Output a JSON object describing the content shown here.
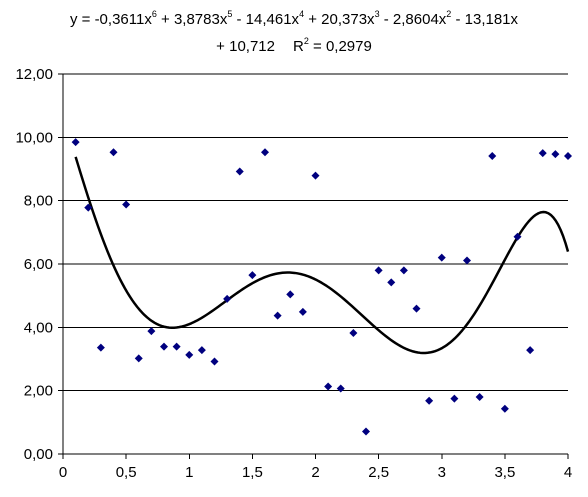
{
  "chart_data": {
    "type": "scatter",
    "title": {
      "line1": [
        {
          "text": "y = -0,3611x"
        },
        {
          "sup": "6"
        },
        {
          "text": " + 3,8783x"
        },
        {
          "sup": "5"
        },
        {
          "text": " - 14,461x"
        },
        {
          "sup": "4"
        },
        {
          "text": " + 20,373x"
        },
        {
          "sup": "3"
        },
        {
          "text": " - 2,8604x"
        },
        {
          "sup": "2"
        },
        {
          "text": " - 13,181x"
        }
      ],
      "line2": [
        {
          "text": "+ 10,712"
        },
        {
          "gap": true
        },
        {
          "text": "R"
        },
        {
          "sup": "2"
        },
        {
          "text": " = 0,2979"
        }
      ]
    },
    "xlim": [
      0,
      4
    ],
    "ylim": [
      0,
      12
    ],
    "x_ticks": [
      {
        "value": 0,
        "label": "0"
      },
      {
        "value": 0.5,
        "label": "0,5"
      },
      {
        "value": 1,
        "label": "1"
      },
      {
        "value": 1.5,
        "label": "1,5"
      },
      {
        "value": 2,
        "label": "2"
      },
      {
        "value": 2.5,
        "label": "2,5"
      },
      {
        "value": 3,
        "label": "3"
      },
      {
        "value": 3.5,
        "label": "3,5"
      },
      {
        "value": 4,
        "label": "4"
      }
    ],
    "y_ticks": [
      {
        "value": 0,
        "label": "0,00"
      },
      {
        "value": 2,
        "label": "2,00"
      },
      {
        "value": 4,
        "label": "4,00"
      },
      {
        "value": 6,
        "label": "6,00"
      },
      {
        "value": 8,
        "label": "8,00"
      },
      {
        "value": 10,
        "label": "10,00"
      },
      {
        "value": 12,
        "label": "12,00"
      }
    ],
    "grid": {
      "horizontal": true,
      "vertical": false
    },
    "series": [
      {
        "marker": "diamond",
        "color": "#00007f",
        "points": [
          [
            0.1,
            9.85
          ],
          [
            0.2,
            7.78
          ],
          [
            0.3,
            3.36
          ],
          [
            0.4,
            9.53
          ],
          [
            0.5,
            7.88
          ],
          [
            0.6,
            3.02
          ],
          [
            0.7,
            3.88
          ],
          [
            0.8,
            3.39
          ],
          [
            0.9,
            3.39
          ],
          [
            1.0,
            3.13
          ],
          [
            1.1,
            3.28
          ],
          [
            1.2,
            2.92
          ],
          [
            1.3,
            4.9
          ],
          [
            1.4,
            8.92
          ],
          [
            1.5,
            5.65
          ],
          [
            1.6,
            9.53
          ],
          [
            1.7,
            4.37
          ],
          [
            1.8,
            5.04
          ],
          [
            1.9,
            4.49
          ],
          [
            2.0,
            8.79
          ],
          [
            2.1,
            2.13
          ],
          [
            2.2,
            2.07
          ],
          [
            2.3,
            3.82
          ],
          [
            2.4,
            0.71
          ],
          [
            2.5,
            5.8
          ],
          [
            2.6,
            5.42
          ],
          [
            2.7,
            5.8
          ],
          [
            2.8,
            4.59
          ],
          [
            2.9,
            1.68
          ],
          [
            3.0,
            6.2
          ],
          [
            3.1,
            1.75
          ],
          [
            3.2,
            6.11
          ],
          [
            3.3,
            1.8
          ],
          [
            3.4,
            9.41
          ],
          [
            3.5,
            1.43
          ],
          [
            3.6,
            6.86
          ],
          [
            3.7,
            3.28
          ],
          [
            3.8,
            9.5
          ],
          [
            3.9,
            9.47
          ],
          [
            4.0,
            9.41
          ]
        ]
      }
    ],
    "trendline": {
      "type": "polynomial",
      "order": 6,
      "coefficients": [
        -0.3611,
        3.8783,
        -14.461,
        20.373,
        -2.8604,
        -13.181,
        10.712
      ],
      "r_squared": 0.2979,
      "x_range": [
        0.1,
        4.0
      ],
      "color": "#000000"
    }
  }
}
